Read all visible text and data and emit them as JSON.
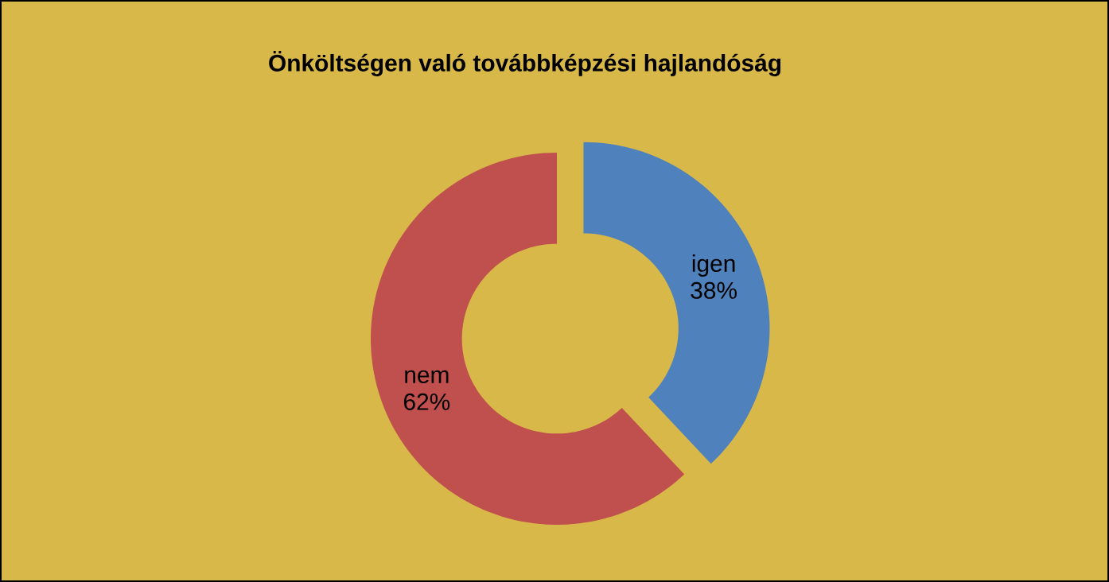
{
  "chart_data": {
    "type": "donut",
    "title": "Önköltségen való továbbképzési hajlandóság",
    "categories": [
      "igen",
      "nem"
    ],
    "values": [
      38,
      62
    ],
    "value_labels": [
      "38%",
      "62%"
    ],
    "colors": [
      "#4f81bd",
      "#c0504d"
    ]
  }
}
